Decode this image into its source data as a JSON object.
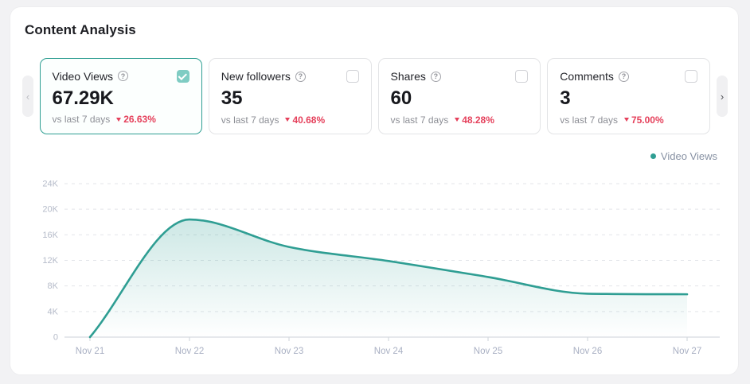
{
  "page": {
    "title": "Content Analysis"
  },
  "icons": {
    "help": "?",
    "prev": "‹",
    "next": "›"
  },
  "cards": [
    {
      "label": "Video Views",
      "value": "67.29K",
      "compare": "vs last 7 days",
      "delta": "26.63%",
      "selected": true,
      "trend": "down"
    },
    {
      "label": "New followers",
      "value": "35",
      "compare": "vs last 7 days",
      "delta": "40.68%",
      "selected": false,
      "trend": "down"
    },
    {
      "label": "Shares",
      "value": "60",
      "compare": "vs last 7 days",
      "delta": "48.28%",
      "selected": false,
      "trend": "down"
    },
    {
      "label": "Comments",
      "value": "3",
      "compare": "vs last 7 days",
      "delta": "75.00%",
      "selected": false,
      "trend": "down"
    }
  ],
  "legend": {
    "label": "Video Views"
  },
  "colors": {
    "accent": "#2E9E92",
    "negative": "#E5405B",
    "grid": "#e3e5e9",
    "axis": "#d6dae0",
    "checkbox_checked": "#7fccc3"
  },
  "chart_data": {
    "type": "area",
    "title": "",
    "xlabel": "",
    "ylabel": "",
    "x": [
      "Nov 21",
      "Nov 22",
      "Nov 23",
      "Nov 24",
      "Nov 25",
      "Nov 26",
      "Nov 27"
    ],
    "series": [
      {
        "name": "Video Views",
        "values": [
          0,
          18400,
          14100,
          11900,
          9400,
          6790,
          6700
        ]
      }
    ],
    "ylim": [
      0,
      24000
    ],
    "yticks": [
      0,
      4000,
      8000,
      12000,
      16000,
      20000,
      24000
    ],
    "ytick_labels": [
      "0",
      "4K",
      "8K",
      "12K",
      "16K",
      "20K",
      "24K"
    ],
    "grid": "horizontal-dashed",
    "legend_position": "top-right",
    "smooth": true,
    "line_color": "#2F9E93",
    "fill_from": "rgba(47,158,147,0.24)",
    "fill_to": "rgba(47,158,147,0)"
  }
}
